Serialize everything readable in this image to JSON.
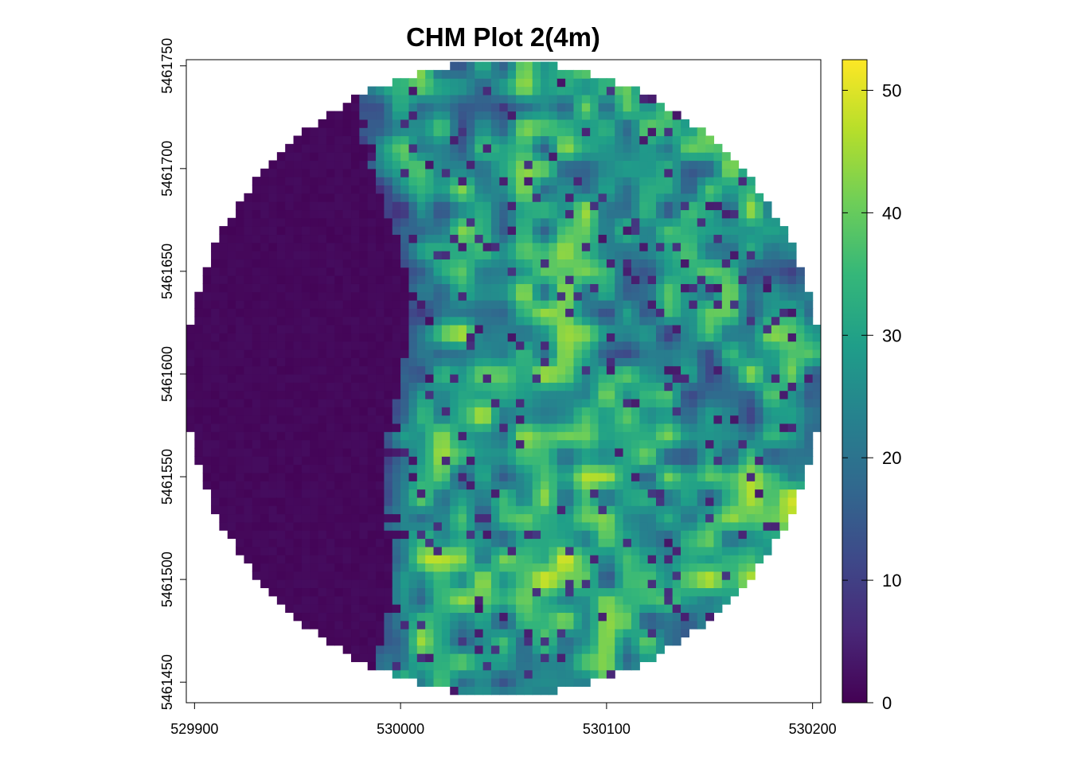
{
  "chart_data": {
    "type": "heatmap",
    "title": "CHM Plot 2(4m)",
    "xlabel": "",
    "ylabel": "",
    "x_range": [
      529896,
      530204
    ],
    "y_range": [
      5461440,
      5461753
    ],
    "x_ticks": [
      529900,
      530000,
      530100,
      530200
    ],
    "x_tick_labels": [
      "529900",
      "530000",
      "530100",
      "530200"
    ],
    "y_ticks": [
      5461450,
      5461500,
      5461550,
      5461600,
      5461650,
      5461700,
      5461750
    ],
    "y_tick_labels": [
      "5461450",
      "5461500",
      "5461550",
      "5461600",
      "5461650",
      "5461700",
      "5461750"
    ],
    "plot_extent": "circular",
    "circle_center": [
      530050,
      5461598
    ],
    "circle_radius": 154,
    "cell_size": 4,
    "colorscale": "viridis",
    "value_range": [
      0,
      52.5
    ],
    "colorbar_ticks": [
      0,
      10,
      20,
      30,
      40,
      50
    ],
    "colorbar_tick_labels": [
      "0",
      "10",
      "20",
      "30",
      "40",
      "50"
    ],
    "palette_stops": [
      "#440154",
      "#482878",
      "#3e4989",
      "#31688e",
      "#26828e",
      "#1f9e89",
      "#35b779",
      "#6ece58",
      "#b5de2b",
      "#fde725"
    ],
    "bare_ground_edge": "west",
    "grid": false,
    "legend_position": "right"
  }
}
